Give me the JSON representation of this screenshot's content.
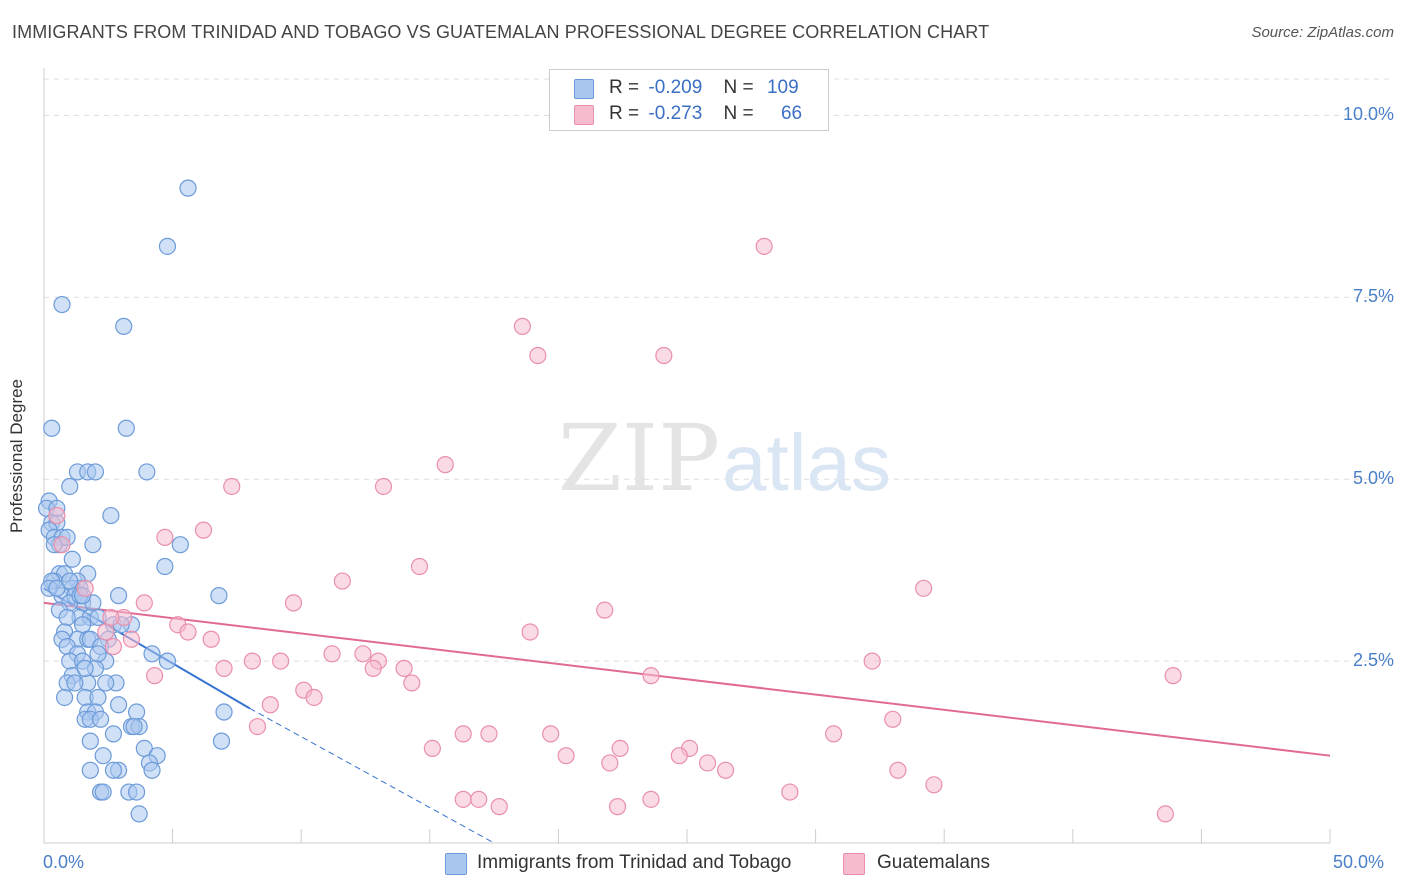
{
  "header": {
    "title": "IMMIGRANTS FROM TRINIDAD AND TOBAGO VS GUATEMALAN PROFESSIONAL DEGREE CORRELATION CHART",
    "source": "Source: ZipAtlas.com"
  },
  "legend": {
    "rows": [
      {
        "r_label": "R =",
        "r_value": "-0.209",
        "n_label": "N =",
        "n_value": "109"
      },
      {
        "r_label": "R =",
        "r_value": "-0.273",
        "n_label": "N =",
        "n_value": "66"
      }
    ]
  },
  "bottom_legend": {
    "items": [
      "Immigrants from Trinidad and Tobago",
      "Guatemalans"
    ]
  },
  "colors": {
    "blue_fill": "#a9c6ef",
    "blue_stroke": "#6c9bd9",
    "blue_line": "#3572d0",
    "pink_fill": "#f6bccd",
    "pink_stroke": "#e98fac",
    "pink_line": "#e06a94",
    "tick_text": "#4a7fc9",
    "grid": "#dddddd"
  },
  "chart_data": {
    "type": "scatter",
    "title": "IMMIGRANTS FROM TRINIDAD AND TOBAGO VS GUATEMALAN PROFESSIONAL DEGREE CORRELATION CHART",
    "xlabel": "",
    "ylabel": "Professional Degree",
    "xlim": [
      0,
      50
    ],
    "ylim": [
      0,
      10.5
    ],
    "x_tick_labels": [
      "0.0%",
      "50.0%"
    ],
    "y_ticks": [
      2.5,
      5.0,
      7.5,
      10.0
    ],
    "y_tick_labels": [
      "2.5%",
      "5.0%",
      "7.5%",
      "10.0%"
    ],
    "grid": true,
    "legend_position": "top-center",
    "watermark": "ZIPatlas",
    "series": [
      {
        "name": "Immigrants from Trinidad and Tobago",
        "color": "#a9c6ef",
        "trend": {
          "x": [
            0.0,
            8.0
          ],
          "y": [
            3.5,
            1.85
          ],
          "extension": {
            "x": [
              8.0,
              17.5
            ],
            "y": [
              1.85,
              0
            ]
          }
        },
        "points": [
          [
            5.6,
            9.0
          ],
          [
            4.8,
            8.2
          ],
          [
            0.7,
            7.4
          ],
          [
            3.1,
            7.1
          ],
          [
            0.3,
            5.7
          ],
          [
            3.2,
            5.7
          ],
          [
            4.0,
            5.1
          ],
          [
            1.3,
            5.1
          ],
          [
            1.7,
            5.1
          ],
          [
            2.0,
            5.1
          ],
          [
            1.0,
            4.9
          ],
          [
            0.2,
            4.7
          ],
          [
            0.1,
            4.6
          ],
          [
            0.3,
            4.4
          ],
          [
            2.6,
            4.5
          ],
          [
            0.5,
            4.4
          ],
          [
            0.2,
            4.3
          ],
          [
            0.4,
            4.2
          ],
          [
            0.7,
            4.2
          ],
          [
            0.6,
            4.1
          ],
          [
            1.9,
            4.1
          ],
          [
            5.3,
            4.1
          ],
          [
            0.4,
            4.1
          ],
          [
            1.1,
            3.9
          ],
          [
            4.7,
            3.8
          ],
          [
            0.6,
            3.7
          ],
          [
            0.8,
            3.7
          ],
          [
            1.7,
            3.7
          ],
          [
            0.4,
            3.6
          ],
          [
            1.3,
            3.6
          ],
          [
            0.3,
            3.6
          ],
          [
            1.4,
            3.5
          ],
          [
            1.1,
            3.5
          ],
          [
            0.7,
            3.4
          ],
          [
            1.2,
            3.4
          ],
          [
            6.8,
            3.4
          ],
          [
            2.9,
            3.4
          ],
          [
            1.5,
            3.3
          ],
          [
            1.9,
            3.3
          ],
          [
            1.0,
            3.3
          ],
          [
            0.6,
            3.2
          ],
          [
            1.4,
            3.1
          ],
          [
            1.8,
            3.1
          ],
          [
            2.1,
            3.1
          ],
          [
            0.9,
            3.1
          ],
          [
            1.5,
            3.0
          ],
          [
            2.7,
            3.0
          ],
          [
            3.4,
            3.0
          ],
          [
            0.8,
            2.9
          ],
          [
            2.5,
            2.8
          ],
          [
            1.3,
            2.8
          ],
          [
            1.7,
            2.8
          ],
          [
            0.7,
            2.8
          ],
          [
            0.9,
            2.7
          ],
          [
            1.8,
            2.8
          ],
          [
            2.2,
            2.7
          ],
          [
            4.2,
            2.6
          ],
          [
            1.3,
            2.6
          ],
          [
            2.4,
            2.5
          ],
          [
            1.0,
            2.5
          ],
          [
            4.8,
            2.5
          ],
          [
            1.5,
            2.5
          ],
          [
            2.0,
            2.4
          ],
          [
            1.1,
            2.3
          ],
          [
            2.8,
            2.2
          ],
          [
            1.7,
            2.2
          ],
          [
            2.4,
            2.2
          ],
          [
            0.9,
            2.2
          ],
          [
            1.2,
            2.2
          ],
          [
            1.6,
            2.0
          ],
          [
            2.1,
            2.0
          ],
          [
            2.9,
            1.9
          ],
          [
            3.6,
            1.8
          ],
          [
            1.7,
            1.8
          ],
          [
            2.0,
            1.8
          ],
          [
            7.0,
            1.8
          ],
          [
            1.6,
            1.7
          ],
          [
            1.8,
            1.7
          ],
          [
            2.2,
            1.7
          ],
          [
            3.4,
            1.6
          ],
          [
            3.7,
            1.6
          ],
          [
            3.5,
            1.6
          ],
          [
            2.7,
            1.5
          ],
          [
            1.8,
            1.4
          ],
          [
            6.9,
            1.4
          ],
          [
            3.9,
            1.3
          ],
          [
            2.3,
            1.2
          ],
          [
            4.4,
            1.2
          ],
          [
            4.1,
            1.1
          ],
          [
            2.9,
            1.0
          ],
          [
            1.8,
            1.0
          ],
          [
            2.7,
            1.0
          ],
          [
            4.2,
            1.0
          ],
          [
            2.2,
            0.7
          ],
          [
            2.3,
            0.7
          ],
          [
            3.3,
            0.7
          ],
          [
            3.6,
            0.7
          ],
          [
            3.7,
            0.4
          ],
          [
            1.4,
            3.4
          ],
          [
            0.2,
            3.5
          ],
          [
            0.5,
            3.5
          ],
          [
            1.5,
            3.4
          ],
          [
            0.9,
            4.2
          ],
          [
            2.1,
            2.6
          ],
          [
            1.0,
            3.6
          ],
          [
            0.8,
            2.0
          ],
          [
            0.5,
            4.6
          ],
          [
            3.0,
            3.0
          ],
          [
            1.6,
            2.4
          ]
        ]
      },
      {
        "name": "Guatemalans",
        "color": "#f6bccd",
        "trend": {
          "x": [
            0.0,
            50.0
          ],
          "y": [
            3.3,
            1.2
          ]
        },
        "points": [
          [
            28.0,
            8.2
          ],
          [
            18.6,
            7.1
          ],
          [
            19.2,
            6.7
          ],
          [
            24.1,
            6.7
          ],
          [
            15.6,
            5.2
          ],
          [
            7.3,
            4.9
          ],
          [
            13.2,
            4.9
          ],
          [
            0.5,
            4.5
          ],
          [
            6.2,
            4.3
          ],
          [
            4.7,
            4.2
          ],
          [
            0.7,
            4.1
          ],
          [
            14.6,
            3.8
          ],
          [
            11.6,
            3.6
          ],
          [
            1.6,
            3.5
          ],
          [
            3.1,
            3.1
          ],
          [
            34.2,
            3.5
          ],
          [
            9.7,
            3.3
          ],
          [
            3.9,
            3.3
          ],
          [
            21.8,
            3.2
          ],
          [
            2.6,
            3.1
          ],
          [
            5.2,
            3.0
          ],
          [
            18.9,
            2.9
          ],
          [
            2.4,
            2.9
          ],
          [
            5.6,
            2.9
          ],
          [
            3.4,
            2.8
          ],
          [
            6.5,
            2.8
          ],
          [
            2.7,
            2.7
          ],
          [
            11.2,
            2.6
          ],
          [
            12.4,
            2.6
          ],
          [
            32.2,
            2.5
          ],
          [
            8.1,
            2.5
          ],
          [
            9.2,
            2.5
          ],
          [
            13.0,
            2.5
          ],
          [
            12.8,
            2.4
          ],
          [
            7.0,
            2.4
          ],
          [
            14.0,
            2.4
          ],
          [
            23.6,
            2.3
          ],
          [
            4.3,
            2.3
          ],
          [
            43.9,
            2.3
          ],
          [
            14.3,
            2.2
          ],
          [
            10.1,
            2.1
          ],
          [
            10.5,
            2.0
          ],
          [
            8.8,
            1.9
          ],
          [
            8.3,
            1.6
          ],
          [
            33.0,
            1.7
          ],
          [
            30.7,
            1.5
          ],
          [
            17.3,
            1.5
          ],
          [
            19.7,
            1.5
          ],
          [
            16.3,
            1.5
          ],
          [
            15.1,
            1.3
          ],
          [
            22.4,
            1.3
          ],
          [
            25.1,
            1.3
          ],
          [
            20.3,
            1.2
          ],
          [
            24.7,
            1.2
          ],
          [
            25.8,
            1.1
          ],
          [
            22.0,
            1.1
          ],
          [
            26.5,
            1.0
          ],
          [
            33.2,
            1.0
          ],
          [
            29.0,
            0.7
          ],
          [
            34.6,
            0.8
          ],
          [
            16.3,
            0.6
          ],
          [
            16.9,
            0.6
          ],
          [
            17.7,
            0.5
          ],
          [
            23.6,
            0.6
          ],
          [
            22.3,
            0.5
          ],
          [
            43.6,
            0.4
          ]
        ]
      }
    ]
  }
}
